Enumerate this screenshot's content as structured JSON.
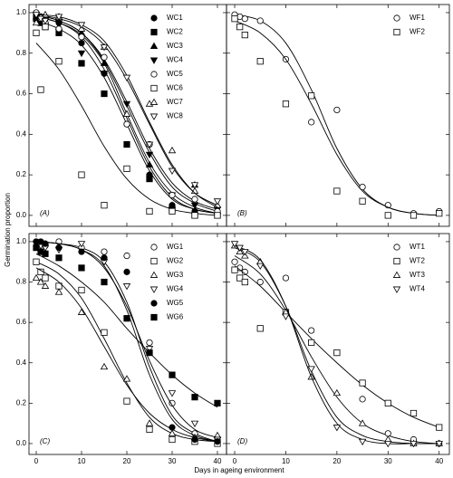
{
  "axis_labels": {
    "y": "Germination proportion",
    "x": "Days in ageing environment"
  },
  "chart_data": [
    {
      "type": "scatter",
      "label": "(A)",
      "legend": "upper right",
      "xlim": [
        -1.6,
        42
      ],
      "ylim": [
        -0.054,
        1.04
      ],
      "xticks": [
        0,
        10,
        20,
        30,
        40
      ],
      "yticks": [
        {
          "value": 0,
          "label": "0.0"
        },
        {
          "value": 0.2,
          "label": "0.2"
        },
        {
          "value": 0.4,
          "label": "0.4"
        },
        {
          "value": 0.6,
          "label": "0.6"
        },
        {
          "value": 0.8,
          "label": "0.8"
        },
        {
          "value": 1,
          "label": "1.0"
        }
      ],
      "x": [
        0,
        1,
        2,
        5,
        10,
        15,
        20,
        25,
        30,
        35,
        40
      ],
      "fit_x": [
        0,
        5,
        10,
        15,
        20,
        25,
        30,
        35,
        40
      ],
      "series": [
        {
          "name": "WC1",
          "marker": "circle",
          "filled": true,
          "values": [
            0.99,
            0.98,
            0.97,
            0.95,
            0.85,
            0.7,
            0.45,
            0.2,
            0.05,
            0.02,
            0.01
          ],
          "fit": [
            0.98,
            0.95,
            0.88,
            0.72,
            0.48,
            0.24,
            0.09,
            0.03,
            0.01
          ]
        },
        {
          "name": "WC2",
          "marker": "square",
          "filled": true,
          "values": [
            0.97,
            0.95,
            0.93,
            0.9,
            0.75,
            0.6,
            0.35,
            0.18,
            0.03,
            0.0,
            0.0
          ],
          "fit": [
            0.96,
            0.92,
            0.84,
            0.68,
            0.45,
            0.22,
            0.08,
            0.03,
            0.01
          ]
        },
        {
          "name": "WC3",
          "marker": "triangle-up",
          "filled": true,
          "values": [
            0.98,
            0.97,
            0.96,
            0.93,
            0.9,
            0.75,
            0.5,
            0.25,
            0.05,
            0.15,
            0.02
          ],
          "fit": [
            0.98,
            0.95,
            0.89,
            0.75,
            0.5,
            0.26,
            0.11,
            0.04,
            0.01
          ]
        },
        {
          "name": "WC4",
          "marker": "triangle-down",
          "filled": true,
          "values": [
            0.99,
            0.98,
            0.97,
            0.95,
            0.8,
            0.7,
            0.55,
            0.3,
            0.1,
            0.05,
            0.03
          ],
          "fit": [
            0.99,
            0.96,
            0.9,
            0.76,
            0.54,
            0.31,
            0.14,
            0.06,
            0.02
          ]
        },
        {
          "name": "WC5",
          "marker": "circle",
          "filled": false,
          "values": [
            1.0,
            0.97,
            0.95,
            0.92,
            0.88,
            0.78,
            0.45,
            0.35,
            0.1,
            0.08,
            0.02
          ],
          "fit": [
            0.99,
            0.96,
            0.9,
            0.77,
            0.56,
            0.33,
            0.16,
            0.07,
            0.03
          ]
        },
        {
          "name": "WC6",
          "marker": "square",
          "filled": false,
          "values": [
            0.9,
            0.62,
            0.93,
            0.76,
            0.2,
            0.05,
            0.23,
            0.02,
            0.02,
            0.0,
            0.0
          ],
          "fit": [
            0.85,
            0.72,
            0.54,
            0.34,
            0.18,
            0.08,
            0.03,
            0.01,
            0.0
          ]
        },
        {
          "name": "WC7",
          "marker": "triangle-up",
          "filled": false,
          "values": [
            0.95,
            0.98,
            0.99,
            0.98,
            0.92,
            0.83,
            0.5,
            0.55,
            0.32,
            0.12,
            0.05
          ],
          "fit": [
            0.99,
            0.97,
            0.93,
            0.84,
            0.67,
            0.45,
            0.24,
            0.11,
            0.05
          ]
        },
        {
          "name": "WC8",
          "marker": "triangle-down",
          "filled": false,
          "values": [
            0.99,
            0.97,
            0.96,
            0.98,
            0.94,
            0.83,
            0.68,
            0.35,
            0.22,
            0.15,
            0.07
          ],
          "fit": [
            0.99,
            0.98,
            0.94,
            0.86,
            0.69,
            0.46,
            0.25,
            0.11,
            0.04
          ]
        }
      ]
    },
    {
      "type": "scatter",
      "label": "(B)",
      "legend": "upper right",
      "xlim": [
        -1.6,
        42
      ],
      "ylim": [
        -0.054,
        1.04
      ],
      "xticks": [
        0,
        10,
        20,
        30,
        40
      ],
      "yticks": [
        {
          "value": 0,
          "label": "0.0"
        },
        {
          "value": 0.2,
          "label": "0.2"
        },
        {
          "value": 0.4,
          "label": "0.4"
        },
        {
          "value": 0.6,
          "label": "0.6"
        },
        {
          "value": 0.8,
          "label": "0.8"
        },
        {
          "value": 1,
          "label": "1.0"
        }
      ],
      "x": [
        0,
        1,
        2,
        5,
        10,
        15,
        20,
        25,
        30,
        35,
        40
      ],
      "fit_x": [
        0,
        5,
        10,
        15,
        20,
        25,
        30,
        35,
        40
      ],
      "series": [
        {
          "name": "WF1",
          "marker": "circle",
          "filled": false,
          "values": [
            0.99,
            0.98,
            0.97,
            0.96,
            0.77,
            0.46,
            0.52,
            0.14,
            0.05,
            0.01,
            0.02
          ],
          "fit": [
            0.99,
            0.96,
            0.85,
            0.62,
            0.33,
            0.13,
            0.04,
            0.01,
            0.0
          ]
        },
        {
          "name": "WF2",
          "marker": "square",
          "filled": false,
          "values": [
            0.97,
            0.93,
            0.89,
            0.76,
            0.55,
            0.59,
            0.12,
            0.07,
            0.0,
            0.0,
            0.01
          ],
          "fit": [
            0.96,
            0.9,
            0.77,
            0.55,
            0.3,
            0.12,
            0.04,
            0.01,
            0.0
          ]
        }
      ]
    },
    {
      "type": "scatter",
      "label": "(C)",
      "legend": "upper right",
      "xlim": [
        -1.6,
        42
      ],
      "ylim": [
        -0.054,
        1.04
      ],
      "xticks": [
        0,
        10,
        20,
        30,
        40
      ],
      "yticks": [
        {
          "value": 0,
          "label": "0.0"
        },
        {
          "value": 0.2,
          "label": "0.2"
        },
        {
          "value": 0.4,
          "label": "0.4"
        },
        {
          "value": 0.6,
          "label": "0.6"
        },
        {
          "value": 0.8,
          "label": "0.8"
        },
        {
          "value": 1,
          "label": "1.0"
        }
      ],
      "x": [
        0,
        1,
        2,
        5,
        10,
        15,
        20,
        25,
        30,
        35,
        40
      ],
      "fit_x": [
        0,
        5,
        10,
        15,
        20,
        25,
        30,
        35,
        40
      ],
      "series": [
        {
          "name": "WG1",
          "marker": "circle",
          "filled": false,
          "values": [
            1.0,
            0.99,
            0.98,
            1.0,
            0.97,
            0.95,
            0.93,
            0.5,
            0.2,
            0.05,
            0.02
          ],
          "fit": [
            1.0,
            0.99,
            0.97,
            0.9,
            0.7,
            0.38,
            0.14,
            0.05,
            0.01
          ]
        },
        {
          "name": "WG2",
          "marker": "square",
          "filled": false,
          "values": [
            0.9,
            0.85,
            0.82,
            0.78,
            0.76,
            0.55,
            0.21,
            0.07,
            0.02,
            0.01,
            0.0
          ],
          "fit": [
            0.9,
            0.84,
            0.72,
            0.52,
            0.3,
            0.13,
            0.05,
            0.02,
            0.01
          ]
        },
        {
          "name": "WG3",
          "marker": "triangle-up",
          "filled": false,
          "values": [
            0.82,
            0.8,
            0.78,
            0.75,
            0.65,
            0.38,
            0.32,
            0.1,
            0.05,
            0.03,
            0.04
          ],
          "fit": [
            0.87,
            0.8,
            0.67,
            0.48,
            0.29,
            0.15,
            0.07,
            0.03,
            0.01
          ]
        },
        {
          "name": "WG4",
          "marker": "triangle-down",
          "filled": false,
          "values": [
            0.99,
            0.98,
            0.97,
            0.96,
            0.99,
            0.9,
            0.78,
            0.47,
            0.25,
            0.1,
            0.02
          ],
          "fit": [
            1.0,
            0.99,
            0.96,
            0.87,
            0.68,
            0.41,
            0.19,
            0.07,
            0.03
          ]
        },
        {
          "name": "WG5",
          "marker": "circle",
          "filled": true,
          "values": [
            1.0,
            1.0,
            0.99,
            0.97,
            0.95,
            0.92,
            0.85,
            0.45,
            0.08,
            0.02,
            0.01
          ],
          "fit": [
            1.0,
            0.99,
            0.96,
            0.88,
            0.66,
            0.34,
            0.12,
            0.04,
            0.01
          ]
        },
        {
          "name": "WG6",
          "marker": "square",
          "filled": true,
          "values": [
            0.97,
            0.95,
            0.94,
            0.92,
            0.87,
            0.8,
            0.62,
            0.45,
            0.34,
            0.23,
            0.2
          ],
          "fit": [
            0.94,
            0.88,
            0.8,
            0.7,
            0.57,
            0.45,
            0.34,
            0.25,
            0.18
          ]
        }
      ]
    },
    {
      "type": "scatter",
      "label": "(D)",
      "legend": "upper right",
      "xlim": [
        -1.6,
        42
      ],
      "ylim": [
        -0.054,
        1.04
      ],
      "xticks": [
        0,
        10,
        20,
        30,
        40
      ],
      "yticks": [
        {
          "value": 0,
          "label": "0.0"
        },
        {
          "value": 0.2,
          "label": "0.2"
        },
        {
          "value": 0.4,
          "label": "0.4"
        },
        {
          "value": 0.6,
          "label": "0.6"
        },
        {
          "value": 0.8,
          "label": "0.8"
        },
        {
          "value": 1,
          "label": "1.0"
        }
      ],
      "x": [
        0,
        1,
        2,
        5,
        10,
        15,
        20,
        25,
        30,
        35,
        40
      ],
      "fit_x": [
        0,
        5,
        10,
        15,
        20,
        25,
        30,
        35,
        40
      ],
      "series": [
        {
          "name": "WT1",
          "marker": "circle",
          "filled": false,
          "values": [
            0.9,
            0.87,
            0.85,
            0.8,
            0.82,
            0.56,
            0.45,
            0.22,
            0.05,
            0.02,
            0.0
          ],
          "fit": [
            0.93,
            0.84,
            0.66,
            0.43,
            0.23,
            0.1,
            0.04,
            0.01,
            0.0
          ]
        },
        {
          "name": "WT2",
          "marker": "square",
          "filled": false,
          "values": [
            0.86,
            0.82,
            0.8,
            0.57,
            0.65,
            0.5,
            0.45,
            0.3,
            0.2,
            0.15,
            0.08
          ],
          "fit": [
            0.88,
            0.78,
            0.65,
            0.52,
            0.4,
            0.29,
            0.2,
            0.13,
            0.08
          ]
        },
        {
          "name": "WT3",
          "marker": "triangle-up",
          "filled": false,
          "values": [
            0.98,
            0.95,
            0.93,
            0.9,
            0.65,
            0.33,
            0.25,
            0.1,
            0.02,
            0.0,
            0.0
          ],
          "fit": [
            0.97,
            0.9,
            0.68,
            0.36,
            0.13,
            0.04,
            0.01,
            0.0,
            0.0
          ]
        },
        {
          "name": "WT4",
          "marker": "triangle-down",
          "filled": false,
          "values": [
            0.99,
            0.97,
            0.95,
            0.88,
            0.63,
            0.37,
            0.08,
            0.01,
            0.0,
            0.0,
            0.0
          ],
          "fit": [
            0.98,
            0.91,
            0.68,
            0.33,
            0.1,
            0.02,
            0.0,
            0.0,
            0.0
          ]
        }
      ]
    }
  ]
}
